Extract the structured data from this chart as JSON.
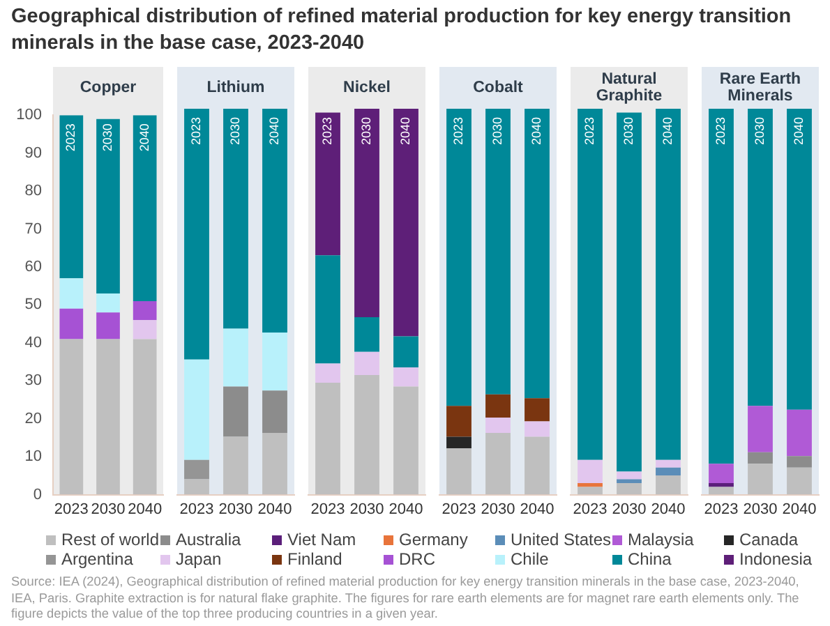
{
  "chart_data": [
    {
      "type": "bar",
      "stacked": true,
      "title": "Geographical distribution of refined material production for key energy transition minerals in the base case, 2023-2040",
      "subtitle": "Copper",
      "categories": [
        "2023",
        "2030",
        "2040"
      ],
      "ylim": [
        0,
        100
      ],
      "yticks": [
        0,
        10,
        20,
        30,
        40,
        50,
        60,
        70,
        80,
        90,
        100
      ],
      "legend": "bottom",
      "annotations": [
        "Source: IEA (2024), Geographical distribution of refined material production for key energy transition minerals in the base case, 2023-2040, IEA, Paris. Graphite extraction is for natural flake graphite. The figures for rare earth elements are for magnet rare earth elements only. The figure depicts the value of the top three producing countries in a given year."
      ],
      "series": [
        {
          "name": "Rest of world",
          "color": "#bfbfbf",
          "values": [
            41,
            41,
            41
          ]
        },
        {
          "name": "Australia",
          "color": "#8c8c8c",
          "values": [
            null,
            null,
            null
          ]
        },
        {
          "name": "Viet Nam",
          "color": "#5b1f7a",
          "values": [
            null,
            null,
            null
          ]
        },
        {
          "name": "Germany",
          "color": "#e8743b",
          "values": [
            null,
            null,
            null
          ]
        },
        {
          "name": "United States",
          "color": "#5b8db8",
          "values": [
            null,
            null,
            null
          ]
        },
        {
          "name": "Malaysia",
          "color": "#b05ad6",
          "values": [
            null,
            null,
            null
          ]
        },
        {
          "name": "Canada",
          "color": "#262626",
          "values": [
            null,
            null,
            null
          ]
        },
        {
          "name": "Argentina",
          "color": "#959595",
          "values": [
            null,
            null,
            null
          ]
        },
        {
          "name": "Japan",
          "color": "#e2c6ee",
          "values": [
            null,
            null,
            5
          ]
        },
        {
          "name": "Finland",
          "color": "#7a3510",
          "values": [
            null,
            null,
            null
          ]
        },
        {
          "name": "DRC",
          "color": "#a652d4",
          "values": [
            8,
            7,
            5
          ]
        },
        {
          "name": "Chile",
          "color": "#b8f1fb",
          "values": [
            8,
            5,
            null
          ]
        },
        {
          "name": "China",
          "color": "#008898",
          "values": [
            43,
            46,
            49
          ]
        },
        {
          "name": "Indonesia",
          "color": "#5e1f78",
          "values": [
            null,
            null,
            null
          ]
        }
      ]
    },
    {
      "type": "bar",
      "stacked": true,
      "subtitle": "Lithium",
      "categories": [
        "2023",
        "2030",
        "2040"
      ],
      "ylim": [
        0,
        100
      ],
      "tick_labels": "x",
      "series": [
        {
          "color": "#bfbfbf",
          "values": [
            4,
            15,
            16
          ]
        },
        {
          "color": "#8c8c8c",
          "values": [
            null,
            13,
            11
          ]
        },
        {
          "color": "#959595",
          "values": [
            5,
            null,
            null
          ]
        },
        {
          "color": "#b8f1fb",
          "values": [
            26,
            15,
            15
          ]
        },
        {
          "color": "#008898",
          "values": [
            65,
            57,
            58
          ]
        }
      ]
    },
    {
      "type": "bar",
      "stacked": true,
      "subtitle": "Nickel",
      "categories": [
        "2023",
        "2030",
        "2040"
      ],
      "ylim": [
        0,
        100
      ],
      "tick_labels": "x",
      "series": [
        {
          "color": "#bfbfbf",
          "values": [
            29,
            31,
            28
          ]
        },
        {
          "color": "#e2c6ee",
          "values": [
            5,
            6,
            5
          ]
        },
        {
          "color": "#008898",
          "values": [
            28,
            9,
            8
          ]
        },
        {
          "color": "#5e1f78",
          "values": [
            37,
            54,
            59
          ]
        }
      ]
    },
    {
      "type": "bar",
      "stacked": true,
      "subtitle": "Cobalt",
      "categories": [
        "2023",
        "2030",
        "2040"
      ],
      "ylim": [
        0,
        100
      ],
      "tick_labels": "x",
      "series": [
        {
          "color": "#bfbfbf",
          "values": [
            12,
            16,
            15
          ]
        },
        {
          "color": "#262626",
          "values": [
            3,
            null,
            null
          ]
        },
        {
          "color": "#e2c6ee",
          "values": [
            null,
            4,
            4
          ]
        },
        {
          "color": "#7a3510",
          "values": [
            8,
            6,
            6
          ]
        },
        {
          "color": "#008898",
          "values": [
            77,
            74,
            75
          ]
        }
      ]
    },
    {
      "type": "bar",
      "stacked": true,
      "subtitle": "Natural Graphite",
      "categories": [
        "2023",
        "2030",
        "2040"
      ],
      "ylim": [
        0,
        100
      ],
      "tick_labels": "x",
      "series": [
        {
          "color": "#bfbfbf",
          "values": [
            2,
            3,
            5
          ]
        },
        {
          "color": "#e8743b",
          "values": [
            1,
            null,
            null
          ]
        },
        {
          "color": "#5b8db8",
          "values": [
            null,
            1,
            2
          ]
        },
        {
          "color": "#e2c6ee",
          "values": [
            6,
            2,
            2
          ]
        },
        {
          "color": "#008898",
          "values": [
            91,
            93,
            91
          ]
        }
      ]
    },
    {
      "type": "bar",
      "stacked": true,
      "subtitle": "Rare Earth Minerals",
      "categories": [
        "2023",
        "2030",
        "2040"
      ],
      "ylim": [
        0,
        100
      ],
      "tick_labels": "x",
      "series": [
        {
          "color": "#bfbfbf",
          "values": [
            2,
            8,
            7
          ]
        },
        {
          "color": "#5b1f7a",
          "values": [
            1,
            null,
            null
          ]
        },
        {
          "color": "#8c8c8c",
          "values": [
            null,
            3,
            3
          ]
        },
        {
          "color": "#b05ad6",
          "values": [
            5,
            12,
            12
          ]
        },
        {
          "color": "#008898",
          "values": [
            92,
            77,
            78
          ]
        }
      ]
    }
  ]
}
